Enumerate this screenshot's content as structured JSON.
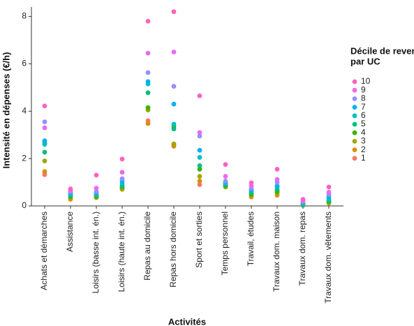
{
  "chart_data": {
    "type": "scatter",
    "x_label": "Activités",
    "y_label": "Intensité en dépenses (€/h)",
    "legend_title": [
      "Décile de revenu",
      "par UC"
    ],
    "categories": [
      "Achats et démarches",
      "Assistance",
      "Loisirs (basse int. én.)",
      "Loisirs (haute int. én.)",
      "Repas au domicile",
      "Repas hors domicile",
      "Sport et sorties",
      "Temps personnel",
      "Travail, études",
      "Travaux dom. maison",
      "Travaux dom. repas",
      "Travaux dom. vêtements"
    ],
    "ylim": [
      0,
      8.4
    ],
    "yticks": [
      0,
      2,
      4,
      6,
      8
    ],
    "series": [
      {
        "name": "10",
        "color": "#FF62BC",
        "values": [
          4.22,
          0.72,
          1.3,
          1.98,
          7.8,
          8.2,
          4.65,
          1.75,
          0.98,
          1.55,
          0.28,
          0.8
        ]
      },
      {
        "name": "9",
        "color": "#E76BF3",
        "values": [
          3.3,
          0.65,
          0.75,
          1.42,
          6.45,
          6.5,
          3.1,
          1.25,
          0.85,
          1.12,
          0.22,
          0.58
        ]
      },
      {
        "name": "8",
        "color": "#9590FF",
        "values": [
          3.55,
          0.6,
          0.6,
          1.15,
          5.63,
          5.05,
          2.95,
          1.05,
          0.75,
          1.0,
          0.18,
          0.48
        ]
      },
      {
        "name": "7",
        "color": "#00B0F6",
        "values": [
          2.75,
          0.55,
          0.55,
          1.05,
          5.25,
          4.3,
          2.35,
          1.0,
          0.7,
          0.85,
          0.12,
          0.4
        ]
      },
      {
        "name": "6",
        "color": "#00BFC4",
        "values": [
          2.6,
          0.5,
          0.5,
          0.95,
          5.15,
          3.45,
          2.05,
          0.95,
          0.65,
          0.8,
          0.08,
          0.3
        ]
      },
      {
        "name": "5",
        "color": "#00BF7D",
        "values": [
          2.27,
          0.45,
          0.45,
          0.85,
          4.78,
          3.25,
          1.7,
          0.9,
          0.55,
          0.7,
          0.05,
          0.22
        ]
      },
      {
        "name": "4",
        "color": "#39B600",
        "values": [
          2.65,
          0.4,
          0.4,
          0.8,
          4.15,
          3.35,
          1.55,
          0.85,
          0.5,
          0.6,
          0.04,
          0.18
        ]
      },
      {
        "name": "3",
        "color": "#A3A500",
        "values": [
          1.9,
          0.35,
          0.35,
          0.72,
          4.05,
          2.62,
          1.25,
          0.8,
          0.45,
          0.55,
          0.03,
          0.15
        ]
      },
      {
        "name": "2",
        "color": "#D89000",
        "values": [
          1.45,
          0.28,
          0.38,
          0.7,
          3.48,
          2.52,
          1.05,
          0.85,
          0.38,
          0.45,
          0.02,
          0.12
        ]
      },
      {
        "name": "1",
        "color": "#F8766D",
        "values": [
          1.32,
          0.45,
          0.42,
          0.75,
          3.6,
          2.58,
          0.9,
          0.9,
          0.6,
          0.65,
          0.05,
          0.2
        ]
      }
    ]
  }
}
